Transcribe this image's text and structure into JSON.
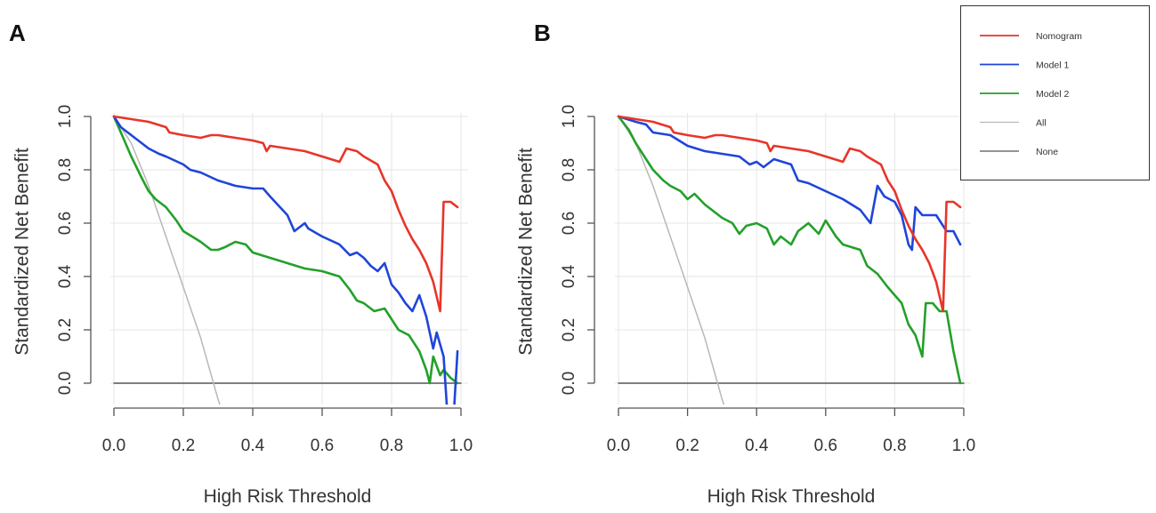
{
  "chart_data": [
    {
      "type": "line",
      "panel": "A",
      "xlabel": "High Risk Threshold",
      "ylabel": "Standardized Net Benefit",
      "xlim": [
        0,
        1
      ],
      "ylim": [
        0,
        1
      ],
      "xticks": [
        "0.0",
        "0.2",
        "0.4",
        "0.6",
        "0.8",
        "1.0"
      ],
      "yticks": [
        "0.0",
        "0.2",
        "0.4",
        "0.6",
        "0.8",
        "1.0"
      ],
      "grid": true,
      "series": [
        {
          "name": "Nomogram",
          "color": "#e8352a",
          "x": [
            0,
            0.05,
            0.1,
            0.15,
            0.16,
            0.2,
            0.25,
            0.28,
            0.3,
            0.35,
            0.4,
            0.43,
            0.44,
            0.45,
            0.5,
            0.55,
            0.6,
            0.65,
            0.67,
            0.7,
            0.72,
            0.76,
            0.78,
            0.8,
            0.82,
            0.84,
            0.86,
            0.88,
            0.9,
            0.92,
            0.94,
            0.95,
            0.97,
            0.99
          ],
          "y": [
            1.0,
            0.99,
            0.98,
            0.96,
            0.94,
            0.93,
            0.92,
            0.93,
            0.93,
            0.92,
            0.91,
            0.9,
            0.87,
            0.89,
            0.88,
            0.87,
            0.85,
            0.83,
            0.88,
            0.87,
            0.85,
            0.82,
            0.76,
            0.72,
            0.65,
            0.59,
            0.54,
            0.5,
            0.45,
            0.38,
            0.27,
            0.68,
            0.68,
            0.66
          ]
        },
        {
          "name": "Model 1",
          "color": "#1f45d9",
          "x": [
            0,
            0.02,
            0.05,
            0.08,
            0.1,
            0.13,
            0.15,
            0.2,
            0.22,
            0.25,
            0.3,
            0.35,
            0.4,
            0.43,
            0.45,
            0.5,
            0.52,
            0.55,
            0.56,
            0.6,
            0.65,
            0.68,
            0.7,
            0.72,
            0.74,
            0.76,
            0.78,
            0.8,
            0.82,
            0.84,
            0.86,
            0.88,
            0.9,
            0.92,
            0.93,
            0.95,
            0.96,
            0.98,
            0.99
          ],
          "y": [
            1.0,
            0.96,
            0.93,
            0.9,
            0.88,
            0.86,
            0.85,
            0.82,
            0.8,
            0.79,
            0.76,
            0.74,
            0.73,
            0.73,
            0.7,
            0.63,
            0.57,
            0.6,
            0.58,
            0.55,
            0.52,
            0.48,
            0.49,
            0.47,
            0.44,
            0.42,
            0.45,
            0.37,
            0.34,
            0.3,
            0.27,
            0.33,
            0.25,
            0.13,
            0.19,
            0.1,
            -0.1,
            -0.1,
            0.12
          ]
        },
        {
          "name": "Model 2",
          "color": "#23a02a",
          "x": [
            0,
            0.02,
            0.05,
            0.08,
            0.1,
            0.12,
            0.15,
            0.18,
            0.2,
            0.25,
            0.28,
            0.3,
            0.32,
            0.35,
            0.38,
            0.4,
            0.45,
            0.5,
            0.55,
            0.6,
            0.65,
            0.68,
            0.7,
            0.72,
            0.75,
            0.78,
            0.8,
            0.82,
            0.85,
            0.88,
            0.9,
            0.91,
            0.92,
            0.94,
            0.95,
            0.97,
            0.99
          ],
          "y": [
            1.0,
            0.94,
            0.85,
            0.77,
            0.72,
            0.69,
            0.66,
            0.61,
            0.57,
            0.53,
            0.5,
            0.5,
            0.51,
            0.53,
            0.52,
            0.49,
            0.47,
            0.45,
            0.43,
            0.42,
            0.4,
            0.35,
            0.31,
            0.3,
            0.27,
            0.28,
            0.24,
            0.2,
            0.18,
            0.12,
            0.05,
            0.0,
            0.1,
            0.03,
            0.05,
            0.02,
            0.0
          ]
        },
        {
          "name": "All",
          "color": "#b8b8b8",
          "x": [
            0,
            0.05,
            0.1,
            0.15,
            0.2,
            0.25,
            0.3,
            0.31
          ],
          "y": [
            1.0,
            0.9,
            0.74,
            0.55,
            0.36,
            0.17,
            -0.06,
            -0.1
          ]
        },
        {
          "name": "None",
          "color": "#555555",
          "x": [
            0,
            1
          ],
          "y": [
            0,
            0
          ]
        }
      ]
    },
    {
      "type": "line",
      "panel": "B",
      "xlabel": "High Risk Threshold",
      "ylabel": "Standardized Net Benefit",
      "xlim": [
        0,
        1
      ],
      "ylim": [
        0,
        1
      ],
      "xticks": [
        "0.0",
        "0.2",
        "0.4",
        "0.6",
        "0.8",
        "1.0"
      ],
      "yticks": [
        "0.0",
        "0.2",
        "0.4",
        "0.6",
        "0.8",
        "1.0"
      ],
      "grid": true,
      "series": [
        {
          "name": "Nomogram",
          "color": "#e8352a",
          "x": [
            0,
            0.05,
            0.1,
            0.15,
            0.16,
            0.2,
            0.25,
            0.28,
            0.3,
            0.35,
            0.4,
            0.43,
            0.44,
            0.45,
            0.5,
            0.55,
            0.6,
            0.65,
            0.67,
            0.7,
            0.72,
            0.76,
            0.78,
            0.8,
            0.82,
            0.84,
            0.86,
            0.88,
            0.9,
            0.92,
            0.94,
            0.95,
            0.97,
            0.99
          ],
          "y": [
            1.0,
            0.99,
            0.98,
            0.96,
            0.94,
            0.93,
            0.92,
            0.93,
            0.93,
            0.92,
            0.91,
            0.9,
            0.87,
            0.89,
            0.88,
            0.87,
            0.85,
            0.83,
            0.88,
            0.87,
            0.85,
            0.82,
            0.76,
            0.72,
            0.65,
            0.59,
            0.54,
            0.5,
            0.45,
            0.38,
            0.27,
            0.68,
            0.68,
            0.66
          ]
        },
        {
          "name": "Model 1",
          "color": "#1f45d9",
          "x": [
            0,
            0.05,
            0.08,
            0.1,
            0.15,
            0.2,
            0.25,
            0.3,
            0.35,
            0.38,
            0.4,
            0.42,
            0.45,
            0.5,
            0.52,
            0.55,
            0.6,
            0.65,
            0.7,
            0.73,
            0.75,
            0.77,
            0.8,
            0.82,
            0.84,
            0.85,
            0.86,
            0.88,
            0.92,
            0.95,
            0.97,
            0.99
          ],
          "y": [
            1.0,
            0.98,
            0.97,
            0.94,
            0.93,
            0.89,
            0.87,
            0.86,
            0.85,
            0.82,
            0.83,
            0.81,
            0.84,
            0.82,
            0.76,
            0.75,
            0.72,
            0.69,
            0.65,
            0.6,
            0.74,
            0.7,
            0.68,
            0.63,
            0.52,
            0.5,
            0.66,
            0.63,
            0.63,
            0.57,
            0.57,
            0.52
          ]
        },
        {
          "name": "Model 2",
          "color": "#23a02a",
          "x": [
            0,
            0.03,
            0.05,
            0.08,
            0.1,
            0.13,
            0.15,
            0.18,
            0.2,
            0.22,
            0.25,
            0.3,
            0.33,
            0.35,
            0.37,
            0.4,
            0.43,
            0.45,
            0.47,
            0.5,
            0.52,
            0.55,
            0.58,
            0.6,
            0.63,
            0.65,
            0.7,
            0.72,
            0.75,
            0.78,
            0.8,
            0.82,
            0.84,
            0.86,
            0.88,
            0.89,
            0.91,
            0.93,
            0.95,
            0.97,
            0.99
          ],
          "y": [
            1.0,
            0.95,
            0.9,
            0.84,
            0.8,
            0.76,
            0.74,
            0.72,
            0.69,
            0.71,
            0.67,
            0.62,
            0.6,
            0.56,
            0.59,
            0.6,
            0.58,
            0.52,
            0.55,
            0.52,
            0.57,
            0.6,
            0.56,
            0.61,
            0.55,
            0.52,
            0.5,
            0.44,
            0.41,
            0.36,
            0.33,
            0.3,
            0.22,
            0.18,
            0.1,
            0.3,
            0.3,
            0.27,
            0.27,
            0.12,
            0.0
          ]
        },
        {
          "name": "All",
          "color": "#b8b8b8",
          "x": [
            0,
            0.05,
            0.1,
            0.15,
            0.2,
            0.25,
            0.3,
            0.31
          ],
          "y": [
            1.0,
            0.9,
            0.74,
            0.55,
            0.36,
            0.17,
            -0.06,
            -0.1
          ]
        },
        {
          "name": "None",
          "color": "#555555",
          "x": [
            0,
            1
          ],
          "y": [
            0,
            0
          ]
        }
      ]
    }
  ],
  "legend": {
    "entries": [
      {
        "label": "Nomogram",
        "color": "#e8352a"
      },
      {
        "label": "Model 1",
        "color": "#1f45d9"
      },
      {
        "label": "Model 2",
        "color": "#23a02a"
      },
      {
        "label": "All",
        "color": "#b8b8b8"
      },
      {
        "label": "None",
        "color": "#555555"
      }
    ]
  }
}
